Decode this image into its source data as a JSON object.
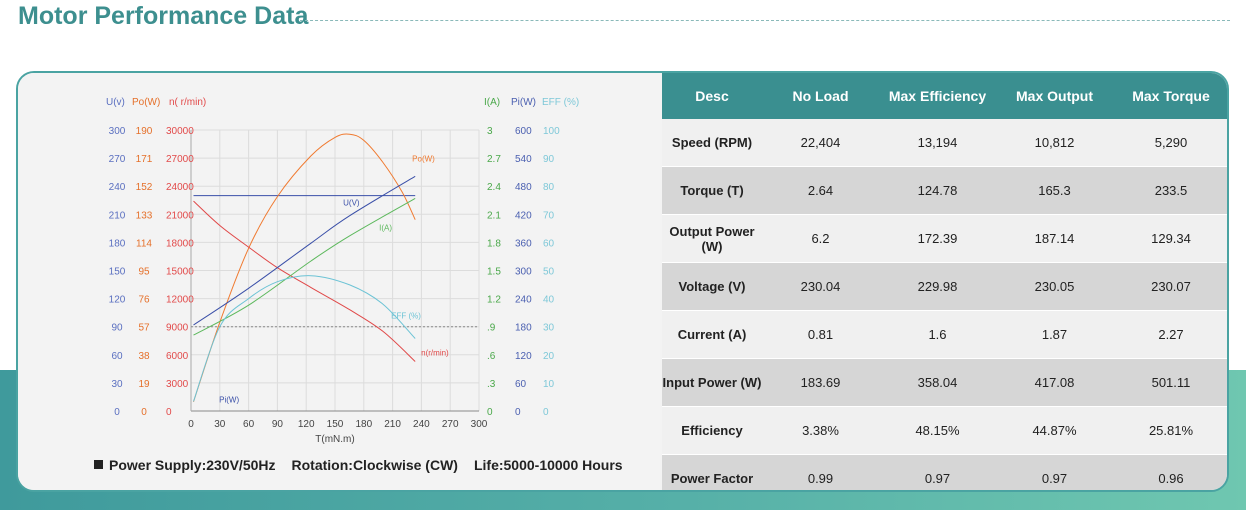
{
  "title": "Motor Performance Data",
  "footer": {
    "power_supply": "Power Supply:230V/50Hz",
    "rotation": "Rotation:Clockwise (CW)",
    "life": "Life:5000-10000 Hours"
  },
  "table": {
    "headers": [
      "Desc",
      "No Load",
      "Max Efficiency",
      "Max Output",
      "Max Torque"
    ],
    "rows": [
      [
        "Speed (RPM)",
        "22,404",
        "13,194",
        "10,812",
        "5,290"
      ],
      [
        "Torque (T)",
        "2.64",
        "124.78",
        "165.3",
        "233.5"
      ],
      [
        "Output Power (W)",
        "6.2",
        "172.39",
        "187.14",
        "129.34"
      ],
      [
        "Voltage (V)",
        "230.04",
        "229.98",
        "230.05",
        "230.07"
      ],
      [
        "Current (A)",
        "0.81",
        "1.6",
        "1.87",
        "2.27"
      ],
      [
        "Input Power (W)",
        "183.69",
        "358.04",
        "417.08",
        "501.11"
      ],
      [
        "Efficiency",
        "3.38%",
        "48.15%",
        "44.87%",
        "25.81%"
      ],
      [
        "Power Factor",
        "0.99",
        "0.97",
        "0.97",
        "0.96"
      ]
    ]
  },
  "chart_data": {
    "type": "line",
    "xlabel": "T(mN.m)",
    "xlim": [
      0,
      300
    ],
    "x_ticks": [
      "0",
      "30",
      "60",
      "90",
      "120",
      "150",
      "180",
      "210",
      "240",
      "270",
      "300"
    ],
    "grid": true,
    "left_axes": [
      {
        "key": "U",
        "label": "U(v)",
        "color": "#5a6fc0",
        "range": [
          0,
          300
        ],
        "ticks": [
          "0",
          "30",
          "60",
          "90",
          "120",
          "150",
          "180",
          "210",
          "240",
          "270",
          "300"
        ]
      },
      {
        "key": "Po",
        "label": "Po(W)",
        "color": "#e5702a",
        "range": [
          0,
          190
        ],
        "ticks": [
          "0",
          "19",
          "38",
          "57",
          "76",
          "95",
          "114",
          "133",
          "152",
          "171",
          "190"
        ]
      },
      {
        "key": "n",
        "label": "n( r/min)",
        "color": "#e24a4a",
        "range": [
          0,
          30000
        ],
        "ticks": [
          "0",
          "3000",
          "6000",
          "9000",
          "12000",
          "15000",
          "18000",
          "21000",
          "24000",
          "27000",
          "30000"
        ]
      }
    ],
    "right_axes": [
      {
        "key": "I",
        "label": "I(A)",
        "color": "#4aa84a",
        "range": [
          0,
          3
        ],
        "ticks": [
          "0",
          ".3",
          ".6",
          ".9",
          "1.2",
          "1.5",
          "1.8",
          "2.1",
          "2.4",
          "2.7",
          "3"
        ]
      },
      {
        "key": "Pi",
        "label": "Pi(W)",
        "color": "#4a5fb0",
        "range": [
          0,
          600
        ],
        "ticks": [
          "0",
          "60",
          "120",
          "180",
          "240",
          "300",
          "360",
          "420",
          "480",
          "540",
          "600"
        ]
      },
      {
        "key": "EFF",
        "label": "EFF (%)",
        "color": "#7ec8d8",
        "range": [
          0,
          100
        ],
        "ticks": [
          "0",
          "10",
          "20",
          "30",
          "40",
          "50",
          "60",
          "70",
          "80",
          "90",
          "100"
        ]
      }
    ],
    "series": [
      {
        "name": "U(V)",
        "axis": "U",
        "color": "#3a4fa8",
        "x": [
          2.64,
          233.5
        ],
        "y": [
          230,
          230
        ]
      },
      {
        "name": "Po(W)",
        "axis": "Po",
        "color": "#f07a30",
        "x": [
          2.64,
          30,
          60,
          90,
          124.78,
          150,
          165.3,
          180,
          200,
          220,
          233.5
        ],
        "y": [
          6.2,
          60,
          110,
          145,
          172.39,
          185,
          187.14,
          183,
          168,
          148,
          129.34
        ]
      },
      {
        "name": "n(r/min)",
        "axis": "n",
        "color": "#e04848",
        "x": [
          2.64,
          30,
          60,
          90,
          124.78,
          165.3,
          200,
          233.5
        ],
        "y": [
          22404,
          19800,
          17500,
          15300,
          13194,
          10812,
          8500,
          5290
        ]
      },
      {
        "name": "I(A)",
        "axis": "I",
        "color": "#5cb85c",
        "x": [
          2.64,
          60,
          124.78,
          165.3,
          233.5
        ],
        "y": [
          0.81,
          1.13,
          1.6,
          1.87,
          2.27
        ]
      },
      {
        "name": "Pi(W)",
        "axis": "Pi",
        "color": "#3a4fa8",
        "x": [
          2.64,
          60,
          124.78,
          165.3,
          233.5
        ],
        "y": [
          183.69,
          262,
          358.04,
          417.08,
          501.11
        ]
      },
      {
        "name": "EFF (%)",
        "axis": "EFF",
        "color": "#6cc3d5",
        "x": [
          2.64,
          30,
          60,
          90,
          124.78,
          165.3,
          200,
          233.5
        ],
        "y": [
          3.38,
          30,
          40,
          46,
          48.15,
          44.87,
          38,
          25.81
        ]
      }
    ]
  }
}
